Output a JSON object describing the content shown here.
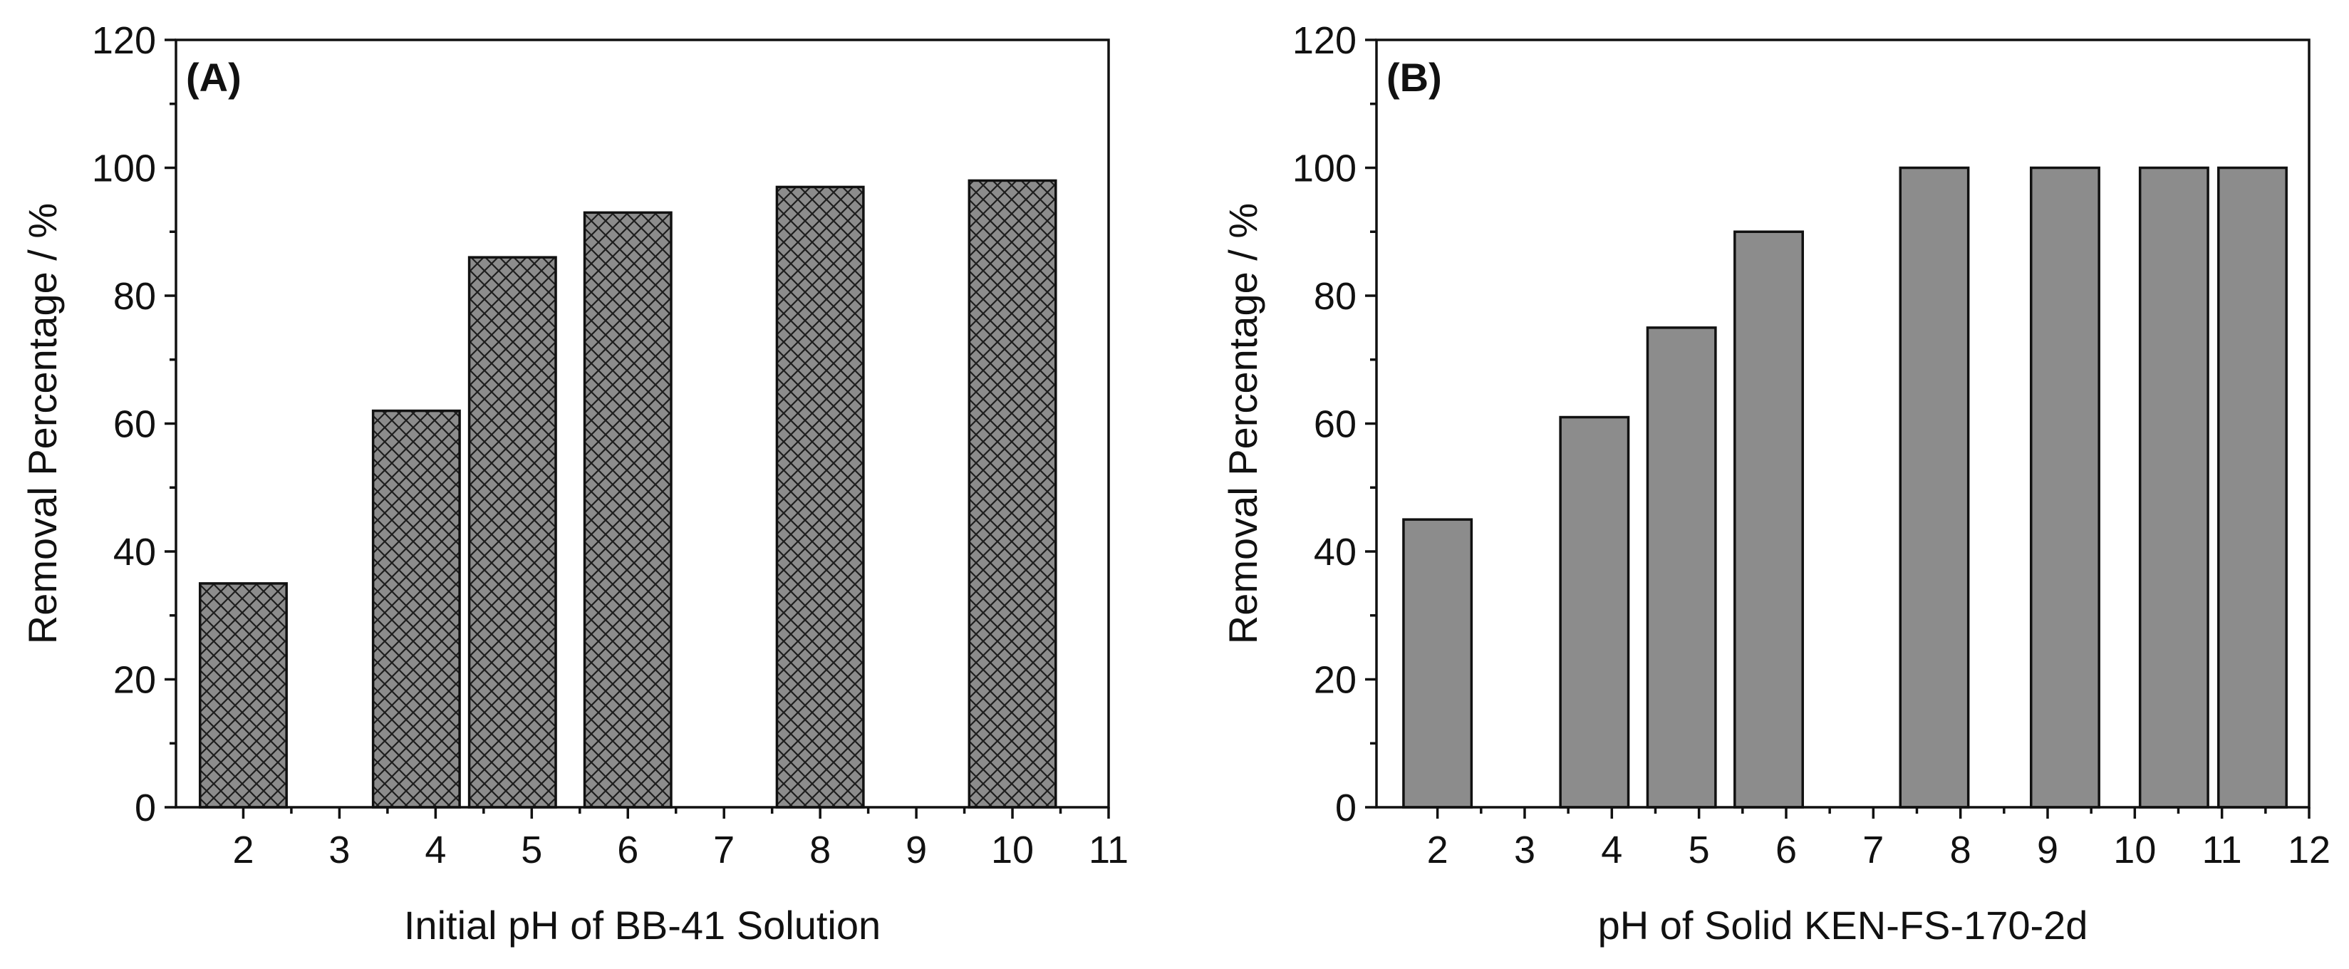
{
  "chart_data": [
    {
      "type": "bar",
      "panel_label": "(A)",
      "title": "",
      "xlabel": "Initial pH of BB-41 Solution",
      "ylabel": "Removal Percentage / %",
      "x": [
        2,
        3.8,
        4.8,
        6,
        8,
        10
      ],
      "values": [
        35,
        62,
        86,
        93,
        97,
        98
      ],
      "bar_width": 0.9,
      "bar_fill": "#8c8c8c",
      "bar_pattern": "crosshatch",
      "xlim": [
        1.3,
        11
      ],
      "ylim": [
        0,
        120
      ],
      "xticks": [
        2,
        3,
        4,
        5,
        6,
        7,
        8,
        9,
        10,
        11
      ],
      "xtick_labels": [
        "2",
        "3",
        "4",
        "5",
        "6",
        "7",
        "8",
        "9",
        "10",
        "11"
      ],
      "yticks": [
        0,
        20,
        40,
        60,
        80,
        100,
        120
      ],
      "ytick_labels": [
        "0",
        "20",
        "40",
        "60",
        "80",
        "100",
        "120"
      ],
      "grid": false,
      "legend": "none"
    },
    {
      "type": "bar",
      "panel_label": "(B)",
      "title": "",
      "xlabel": "pH of Solid KEN-FS-170-2d",
      "ylabel": "Removal Percentage / %",
      "x": [
        2,
        3.8,
        4.8,
        5.8,
        7.7,
        9.2,
        10.45,
        11.35
      ],
      "values": [
        45,
        61,
        75,
        90,
        100,
        100,
        100,
        100
      ],
      "bar_width": 0.78,
      "bar_fill": "#8c8c8c",
      "bar_pattern": "solid",
      "xlim": [
        1.3,
        12
      ],
      "ylim": [
        0,
        120
      ],
      "xticks": [
        2,
        3,
        4,
        5,
        6,
        7,
        8,
        9,
        10,
        11,
        12
      ],
      "xtick_labels": [
        "2",
        "3",
        "4",
        "5",
        "6",
        "7",
        "8",
        "9",
        "10",
        "11",
        "12"
      ],
      "yticks": [
        0,
        20,
        40,
        60,
        80,
        100,
        120
      ],
      "ytick_labels": [
        "0",
        "20",
        "40",
        "60",
        "80",
        "100",
        "120"
      ],
      "grid": false,
      "legend": "none"
    }
  ]
}
